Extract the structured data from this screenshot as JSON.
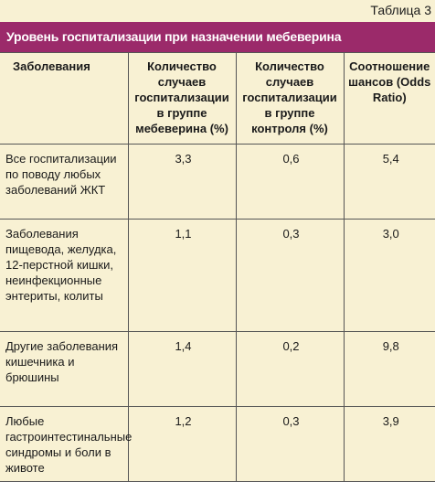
{
  "table_number": "Таблица 3",
  "title": "Уровень госпитализации при назначении мебеверина",
  "columns": [
    "Заболевания",
    "Количество случаев госпитализации в группе мебеверина (%)",
    "Количество случаев госпитализации в группе контроля (%)",
    "Соотношение шансов (Odds Ratio)"
  ],
  "rows": [
    {
      "name": "Все госпитализации по поводу любых заболеваний ЖКТ",
      "mebeverine": "3,3",
      "control": "0,6",
      "odds_ratio": "5,4"
    },
    {
      "name": "Заболевания пищевода, желудка, 12-перстной кишки, неинфекционные энтериты, колиты",
      "mebeverine": "1,1",
      "control": "0,3",
      "odds_ratio": "3,0"
    },
    {
      "name": "Другие заболевания кишечника и брюшины",
      "mebeverine": "1,4",
      "control": "0,2",
      "odds_ratio": "9,8"
    },
    {
      "name": "Любые гастроинтестинальные синдромы и боли в животе",
      "mebeverine": "1,2",
      "control": "0,3",
      "odds_ratio": "3,9"
    }
  ],
  "colors": {
    "title_bar": "#9b2a6a",
    "background": "#f8f1d3",
    "border": "#555555"
  }
}
